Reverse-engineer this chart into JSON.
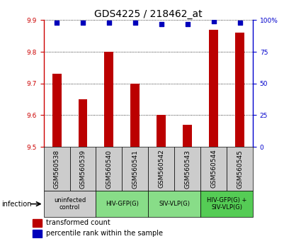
{
  "title": "GDS4225 / 218462_at",
  "samples": [
    "GSM560538",
    "GSM560539",
    "GSM560540",
    "GSM560541",
    "GSM560542",
    "GSM560543",
    "GSM560544",
    "GSM560545"
  ],
  "bar_values": [
    9.73,
    9.65,
    9.8,
    9.7,
    9.6,
    9.57,
    9.87,
    9.86
  ],
  "percentile_values": [
    98,
    98,
    98,
    98,
    97,
    97,
    99,
    98
  ],
  "ylim_left": [
    9.5,
    9.9
  ],
  "ylim_right": [
    0,
    100
  ],
  "yticks_left": [
    9.5,
    9.6,
    9.7,
    9.8,
    9.9
  ],
  "yticks_right": [
    0,
    25,
    50,
    75,
    100
  ],
  "bar_color": "#bb0000",
  "dot_color": "#0000bb",
  "bar_width": 0.35,
  "groups": [
    {
      "label": "uninfected\ncontrol",
      "start": 0,
      "end": 2,
      "color": "#cccccc"
    },
    {
      "label": "HIV-GFP(G)",
      "start": 2,
      "end": 4,
      "color": "#88dd88"
    },
    {
      "label": "SIV-VLP(G)",
      "start": 4,
      "end": 6,
      "color": "#88dd88"
    },
    {
      "label": "HIV-GFP(G) +\nSIV-VLP(G)",
      "start": 6,
      "end": 8,
      "color": "#55cc55"
    }
  ],
  "infection_label": "infection",
  "legend_bar_label": "transformed count",
  "legend_dot_label": "percentile rank within the sample",
  "title_fontsize": 10,
  "tick_fontsize": 6.5,
  "label_fontsize": 7.5,
  "background_color": "#ffffff",
  "plot_bg_color": "#ffffff"
}
